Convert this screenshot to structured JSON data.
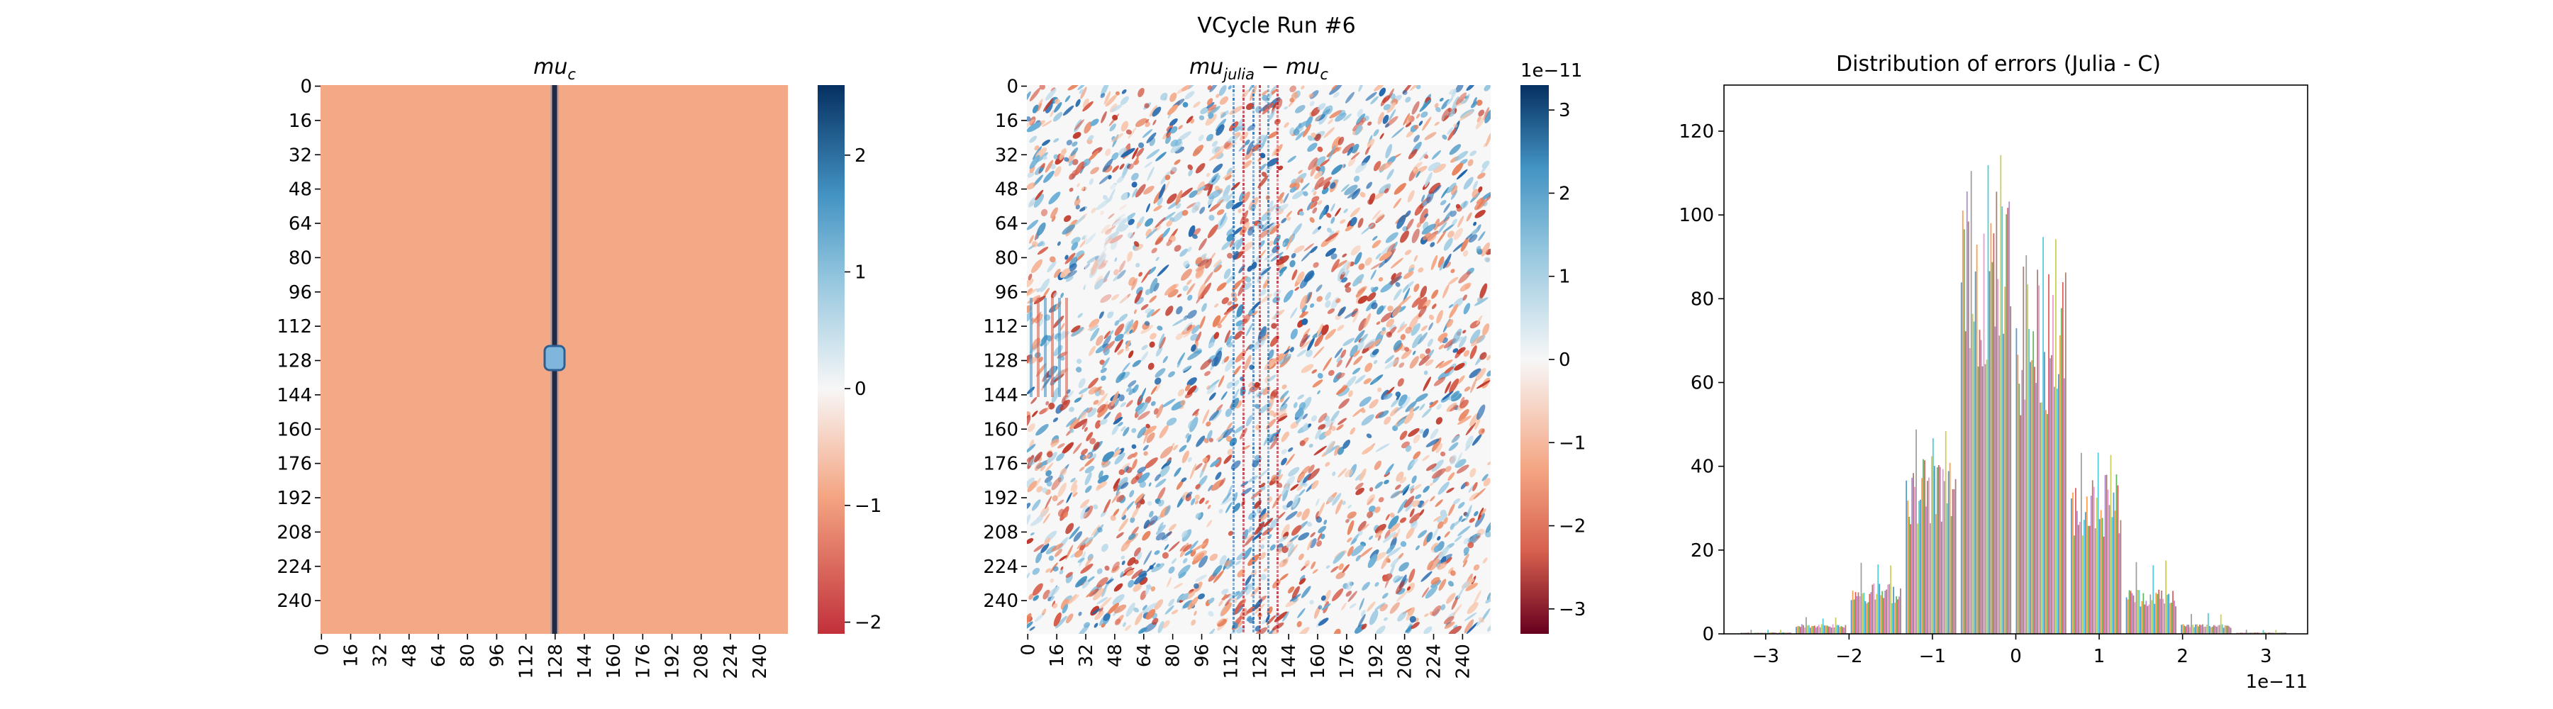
{
  "figure": {
    "suptitle": "VCycle Run #6"
  },
  "chart_data": [
    {
      "type": "heatmap",
      "title": "mu",
      "title_sub": "c",
      "x_ticks": [
        "0",
        "16",
        "32",
        "48",
        "64",
        "80",
        "96",
        "112",
        "128",
        "144",
        "160",
        "176",
        "192",
        "208",
        "224",
        "240"
      ],
      "y_ticks": [
        "0",
        "16",
        "32",
        "48",
        "64",
        "80",
        "96",
        "112",
        "128",
        "144",
        "160",
        "176",
        "192",
        "208",
        "224",
        "240"
      ],
      "grid_size": 256,
      "colormap": "RdBu",
      "colorbar": {
        "range": [
          -2.1,
          2.6
        ],
        "ticks": [
          "2",
          "1",
          "0",
          "−1",
          "−2"
        ],
        "tick_values": [
          2,
          1,
          0,
          -1,
          -2
        ]
      },
      "background_value": -1.0,
      "feature": {
        "column": 127,
        "line_value": 2.6,
        "blob_row": 127,
        "blob_value": 1.2
      },
      "grid": false
    },
    {
      "type": "heatmap",
      "title": "mu",
      "title_sub": "julia",
      "title_rest": " − mu",
      "title_rest_sub": "c",
      "x_ticks": [
        "0",
        "16",
        "32",
        "48",
        "64",
        "80",
        "96",
        "112",
        "128",
        "144",
        "160",
        "176",
        "192",
        "208",
        "224",
        "240"
      ],
      "y_ticks": [
        "0",
        "16",
        "32",
        "48",
        "64",
        "80",
        "96",
        "112",
        "128",
        "144",
        "160",
        "176",
        "192",
        "208",
        "224",
        "240"
      ],
      "grid_size": 256,
      "colormap": "RdBu",
      "colorbar": {
        "range": [
          -3.3,
          3.3
        ],
        "ticks": [
          "3",
          "2",
          "1",
          "0",
          "−1",
          "−2",
          "−3"
        ],
        "tick_values": [
          3,
          2,
          1,
          0,
          -1,
          -2,
          -3
        ],
        "offset_text": "1e−11"
      },
      "grid": false
    },
    {
      "type": "bar",
      "title": "Distribution of errors (Julia - C)",
      "xlim": [
        -3.5,
        3.5
      ],
      "ylim": [
        0,
        131
      ],
      "x_ticks": [
        "−3",
        "−2",
        "−1",
        "0",
        "1",
        "2",
        "3"
      ],
      "x_tick_values": [
        -3,
        -2,
        -1,
        0,
        1,
        2,
        3
      ],
      "y_ticks": [
        "0",
        "20",
        "40",
        "60",
        "80",
        "100",
        "120"
      ],
      "y_tick_values": [
        0,
        20,
        40,
        60,
        80,
        100,
        120
      ],
      "x_offset_text": "1e−11",
      "bin_edges": [
        -3.3,
        -2.64,
        -1.98,
        -1.32,
        -0.66,
        0.0,
        0.66,
        1.32,
        1.98,
        2.64,
        3.3
      ],
      "bin_peak_counts": [
        1,
        4,
        18,
        49,
        115,
        97,
        46,
        18,
        5,
        1
      ],
      "bin_typical_counts": [
        0.3,
        2,
        10,
        36,
        88,
        72,
        32,
        9,
        2,
        0.3
      ],
      "grid": false
    }
  ]
}
